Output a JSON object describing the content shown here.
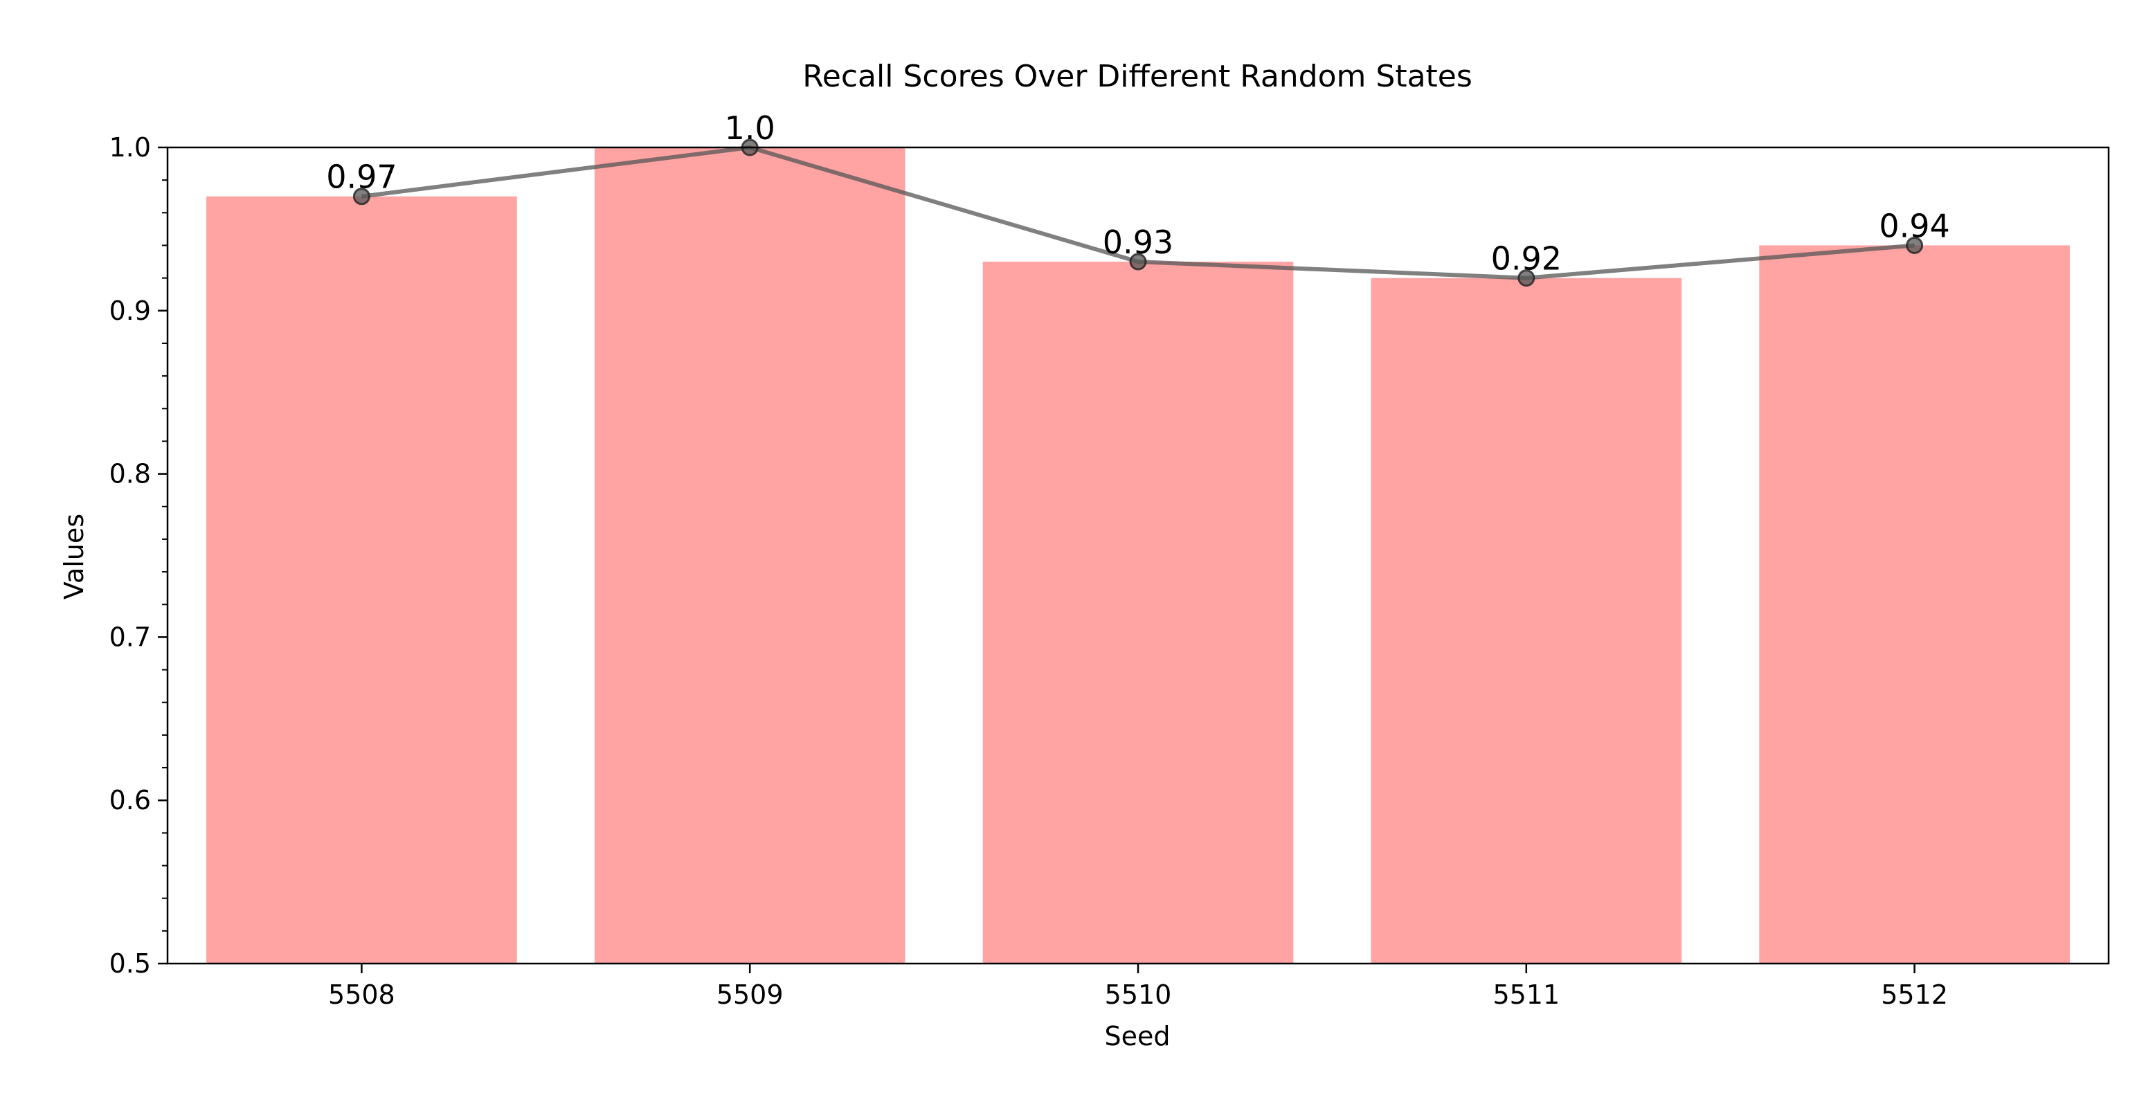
{
  "chart_data": {
    "type": "bar",
    "title": "Recall Scores Over Different Random States",
    "xlabel": "Seed",
    "ylabel": "Values",
    "categories": [
      "5508",
      "5509",
      "5510",
      "5511",
      "5512"
    ],
    "values": [
      0.97,
      1.0,
      0.93,
      0.92,
      0.94
    ],
    "value_labels": [
      "0.97",
      "1.0",
      "0.93",
      "0.92",
      "0.94"
    ],
    "overlay_line": {
      "values": [
        0.97,
        1.0,
        0.93,
        0.92,
        0.94
      ],
      "color": "#555555",
      "marker": "circle"
    },
    "ylim": [
      0.5,
      1.0
    ],
    "yticks": [
      0.5,
      0.6,
      0.7,
      0.8,
      0.9,
      1.0
    ],
    "ytick_labels": [
      "0.5",
      "0.6",
      "0.7",
      "0.8",
      "0.9",
      "1.0"
    ],
    "grid": false,
    "bar_color": "#ff6666",
    "bar_opacity": 0.6
  }
}
